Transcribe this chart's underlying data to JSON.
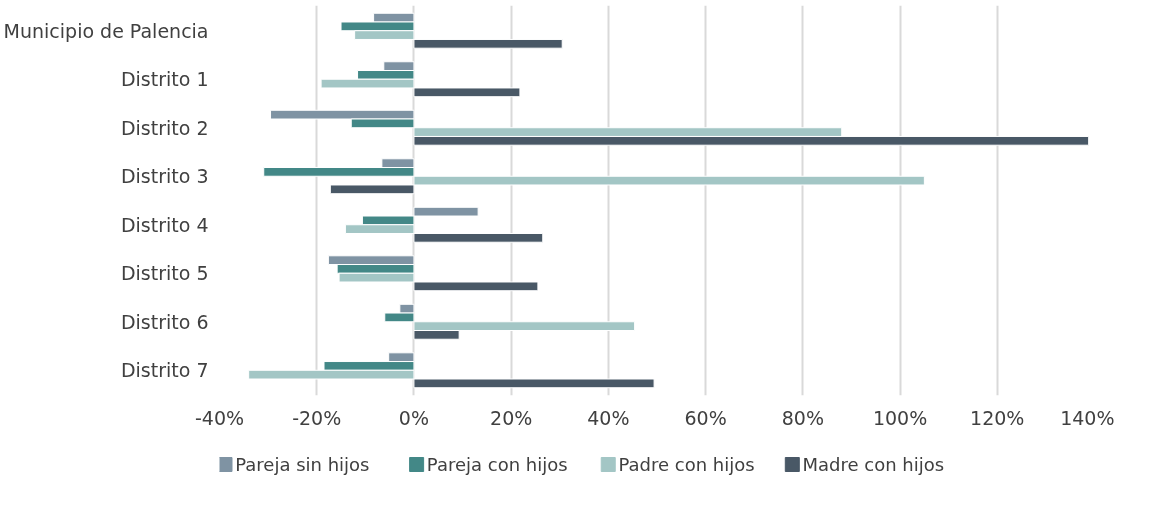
{
  "chart_data": {
    "type": "bar",
    "orientation": "horizontal",
    "categories": [
      "Municipio de Palencia",
      "Distrito 1",
      "Distrito 2",
      "Distrito 3",
      "Distrito 4",
      "Distrito 5",
      "Distrito 6",
      "Distrito 7"
    ],
    "series": [
      {
        "name": "Pareja sin hijos",
        "color": "#7f93a3",
        "values": [
          -8.3,
          -6.2,
          -29.5,
          -6.6,
          13.2,
          -17.6,
          -2.9,
          -5.2
        ]
      },
      {
        "name": "Pareja con hijos",
        "color": "#438887",
        "values": [
          -15,
          -11.6,
          -12.9,
          -30.9,
          -10.6,
          -15.8,
          -6,
          -18.5
        ]
      },
      {
        "name": "Padre con hijos",
        "color": "#a3c6c5",
        "values": [
          -12.2,
          -19.1,
          88,
          105,
          -14.1,
          -15.4,
          45.4,
          -34
        ]
      },
      {
        "name": "Madre con hijos",
        "color": "#495866",
        "values": [
          30.5,
          21.8,
          138.8,
          -17.2,
          26.5,
          25.5,
          9.3,
          49.4
        ]
      }
    ],
    "xlim": [
      -40,
      140
    ],
    "xticks": [
      {
        "value": -40,
        "label": "-40%"
      },
      {
        "value": -20,
        "label": "-20%"
      },
      {
        "value": 0,
        "label": "0%"
      },
      {
        "value": 20,
        "label": "20%"
      },
      {
        "value": 40,
        "label": "40%"
      },
      {
        "value": 60,
        "label": "60%"
      },
      {
        "value": 80,
        "label": "80%"
      },
      {
        "value": 100,
        "label": "100%"
      },
      {
        "value": 120,
        "label": "120%"
      },
      {
        "value": 140,
        "label": "140%"
      }
    ],
    "grid": "x",
    "legend": "bottom"
  }
}
